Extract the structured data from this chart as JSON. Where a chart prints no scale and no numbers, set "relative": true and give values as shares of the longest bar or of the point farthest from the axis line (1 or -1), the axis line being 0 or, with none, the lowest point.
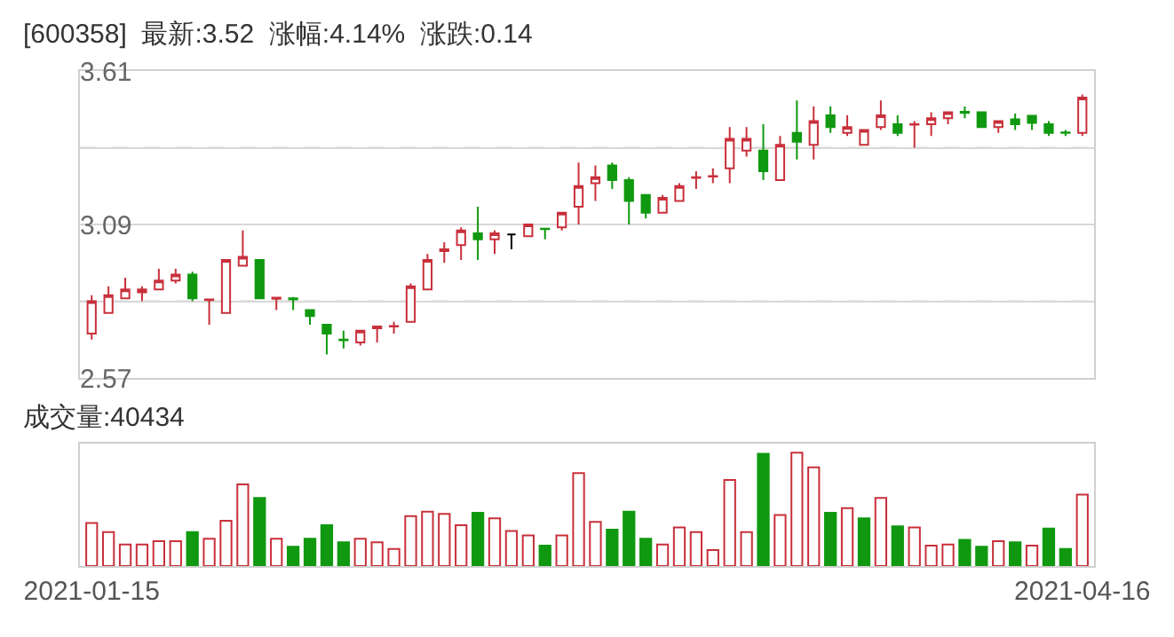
{
  "chart_data": [
    {
      "type": "candlestick",
      "title": "[600358]  最新:3.52  涨幅:4.14%  涨跌:0.14",
      "categories": [
        "2021-01-15",
        null,
        null,
        null,
        null,
        null,
        null,
        null,
        null,
        null,
        null,
        null,
        null,
        null,
        null,
        null,
        null,
        null,
        null,
        null,
        null,
        null,
        null,
        null,
        null,
        null,
        null,
        null,
        null,
        null,
        null,
        null,
        null,
        null,
        null,
        null,
        null,
        null,
        null,
        null,
        null,
        null,
        null,
        null,
        null,
        null,
        null,
        null,
        null,
        null,
        null,
        null,
        null,
        null,
        null,
        null,
        null,
        null,
        null,
        "2021-04-16"
      ],
      "ohlc": [
        [
          2.72,
          2.85,
          2.7,
          2.83
        ],
        [
          2.79,
          2.88,
          2.79,
          2.85
        ],
        [
          2.84,
          2.91,
          2.84,
          2.87
        ],
        [
          2.86,
          2.88,
          2.83,
          2.87
        ],
        [
          2.87,
          2.94,
          2.87,
          2.9
        ],
        [
          2.9,
          2.94,
          2.89,
          2.92
        ],
        [
          2.92,
          2.93,
          2.83,
          2.84
        ],
        [
          2.834,
          2.836,
          2.75,
          2.836
        ],
        [
          2.79,
          2.97,
          2.79,
          2.97
        ],
        [
          2.95,
          3.07,
          2.95,
          2.98
        ],
        [
          2.97,
          2.97,
          2.84,
          2.84
        ],
        [
          2.838,
          2.842,
          2.8,
          2.842
        ],
        [
          2.84,
          2.844,
          2.8,
          2.836
        ],
        [
          2.8,
          2.8,
          2.75,
          2.78
        ],
        [
          2.75,
          2.75,
          2.65,
          2.72
        ],
        [
          2.7,
          2.73,
          2.67,
          2.698
        ],
        [
          2.69,
          2.73,
          2.68,
          2.73
        ],
        [
          2.738,
          2.744,
          2.69,
          2.744
        ],
        [
          2.744,
          2.76,
          2.72,
          2.746
        ],
        [
          2.76,
          2.89,
          2.76,
          2.88
        ],
        [
          2.87,
          2.99,
          2.87,
          2.97
        ],
        [
          3.0,
          3.03,
          2.96,
          3.006
        ],
        [
          3.02,
          3.08,
          2.97,
          3.07
        ],
        [
          3.06,
          3.15,
          2.97,
          3.04
        ],
        [
          3.04,
          3.07,
          2.99,
          3.06
        ],
        [
          3.056,
          3.056,
          3.006,
          3.056
        ],
        [
          3.05,
          3.09,
          3.05,
          3.09
        ],
        [
          3.076,
          3.076,
          3.04,
          3.074
        ],
        [
          3.08,
          3.13,
          3.07,
          3.13
        ],
        [
          3.15,
          3.3,
          3.09,
          3.22
        ],
        [
          3.23,
          3.29,
          3.17,
          3.25
        ],
        [
          3.29,
          3.3,
          3.21,
          3.24
        ],
        [
          3.24,
          3.25,
          3.09,
          3.17
        ],
        [
          3.19,
          3.19,
          3.11,
          3.13
        ],
        [
          3.13,
          3.19,
          3.13,
          3.18
        ],
        [
          3.17,
          3.23,
          3.17,
          3.22
        ],
        [
          3.248,
          3.27,
          3.21,
          3.25
        ],
        [
          3.252,
          3.28,
          3.23,
          3.254
        ],
        [
          3.28,
          3.42,
          3.23,
          3.38
        ],
        [
          3.34,
          3.42,
          3.32,
          3.38
        ],
        [
          3.34,
          3.43,
          3.24,
          3.27
        ],
        [
          3.24,
          3.39,
          3.24,
          3.36
        ],
        [
          3.4,
          3.51,
          3.31,
          3.37
        ],
        [
          3.36,
          3.49,
          3.31,
          3.44
        ],
        [
          3.46,
          3.49,
          3.4,
          3.42
        ],
        [
          3.4,
          3.46,
          3.39,
          3.42
        ],
        [
          3.36,
          3.41,
          3.36,
          3.41
        ],
        [
          3.42,
          3.51,
          3.41,
          3.46
        ],
        [
          3.43,
          3.46,
          3.39,
          3.4
        ],
        [
          3.428,
          3.44,
          3.35,
          3.43
        ],
        [
          3.43,
          3.47,
          3.39,
          3.45
        ],
        [
          3.45,
          3.47,
          3.43,
          3.47
        ],
        [
          3.472,
          3.49,
          3.45,
          3.468
        ],
        [
          3.47,
          3.47,
          3.42,
          3.42
        ],
        [
          3.42,
          3.44,
          3.4,
          3.44
        ],
        [
          3.446,
          3.466,
          3.41,
          3.43
        ],
        [
          3.458,
          3.458,
          3.41,
          3.434
        ],
        [
          3.43,
          3.44,
          3.39,
          3.4
        ],
        [
          3.402,
          3.41,
          3.39,
          3.4
        ],
        [
          3.4,
          3.53,
          3.39,
          3.52
        ]
      ],
      "colors": [
        "#c8303b",
        "#c8303b",
        "#c8303b",
        "#c8303b",
        "#c8303b",
        "#c8303b",
        "#109910",
        "#c8303b",
        "#c8303b",
        "#c8303b",
        "#109910",
        "#c8303b",
        "#109910",
        "#109910",
        "#109910",
        "#109910",
        "#c8303b",
        "#c8303b",
        "#c8303b",
        "#c8303b",
        "#c8303b",
        "#c8303b",
        "#c8303b",
        "#109910",
        "#c8303b",
        "#000000",
        "#c8303b",
        "#109910",
        "#c8303b",
        "#c8303b",
        "#c8303b",
        "#109910",
        "#109910",
        "#109910",
        "#c8303b",
        "#c8303b",
        "#c8303b",
        "#c8303b",
        "#c8303b",
        "#c8303b",
        "#109910",
        "#c8303b",
        "#109910",
        "#c8303b",
        "#109910",
        "#c8303b",
        "#c8303b",
        "#c8303b",
        "#109910",
        "#c8303b",
        "#c8303b",
        "#c8303b",
        "#109910",
        "#109910",
        "#c8303b",
        "#109910",
        "#109910",
        "#109910",
        "#109910",
        "#c8303b"
      ],
      "ylim": [
        2.57,
        3.61
      ],
      "yticks": [
        2.57,
        {
          "value": 2.83,
          "label": null
        },
        3.09,
        {
          "value": 3.35,
          "label": null
        },
        3.61
      ],
      "grid": "y",
      "tick_labels": "y"
    },
    {
      "type": "bar",
      "title": "成交量:40434",
      "relative": true,
      "categories": [
        "2021-01-15",
        null,
        null,
        null,
        null,
        null,
        null,
        null,
        null,
        null,
        null,
        null,
        null,
        null,
        null,
        null,
        null,
        null,
        null,
        null,
        null,
        null,
        null,
        null,
        null,
        null,
        null,
        null,
        null,
        null,
        null,
        null,
        null,
        null,
        null,
        null,
        null,
        null,
        null,
        null,
        null,
        null,
        null,
        null,
        null,
        null,
        null,
        null,
        null,
        null,
        null,
        null,
        null,
        null,
        null,
        null,
        null,
        null,
        null,
        "2021-04-16"
      ],
      "values": [
        0.38,
        0.3,
        0.19,
        0.19,
        0.22,
        0.22,
        0.3,
        0.24,
        0.4,
        0.72,
        0.6,
        0.24,
        0.17,
        0.24,
        0.36,
        0.21,
        0.24,
        0.21,
        0.15,
        0.44,
        0.48,
        0.46,
        0.36,
        0.47,
        0.42,
        0.31,
        0.27,
        0.18,
        0.27,
        0.82,
        0.39,
        0.32,
        0.48,
        0.24,
        0.19,
        0.34,
        0.3,
        0.14,
        0.76,
        0.3,
        0.99,
        0.45,
        1,
        0.87,
        0.47,
        0.51,
        0.42,
        0.6,
        0.35,
        0.34,
        0.18,
        0.19,
        0.23,
        0.17,
        0.22,
        0.21,
        0.18,
        0.33,
        0.15,
        0.63
      ],
      "colors": [
        "#c8303b",
        "#c8303b",
        "#c8303b",
        "#c8303b",
        "#c8303b",
        "#c8303b",
        "#109910",
        "#c8303b",
        "#c8303b",
        "#c8303b",
        "#109910",
        "#c8303b",
        "#109910",
        "#109910",
        "#109910",
        "#109910",
        "#c8303b",
        "#c8303b",
        "#c8303b",
        "#c8303b",
        "#c8303b",
        "#c8303b",
        "#c8303b",
        "#109910",
        "#c8303b",
        "#c8303b",
        "#c8303b",
        "#109910",
        "#c8303b",
        "#c8303b",
        "#c8303b",
        "#109910",
        "#109910",
        "#109910",
        "#c8303b",
        "#c8303b",
        "#c8303b",
        "#c8303b",
        "#c8303b",
        "#c8303b",
        "#109910",
        "#c8303b",
        "#c8303b",
        "#c8303b",
        "#109910",
        "#c8303b",
        "#109910",
        "#c8303b",
        "#109910",
        "#c8303b",
        "#c8303b",
        "#c8303b",
        "#109910",
        "#109910",
        "#c8303b",
        "#109910",
        "#c8303b",
        "#109910",
        "#109910",
        "#c8303b"
      ],
      "tick_labels": "x"
    }
  ]
}
